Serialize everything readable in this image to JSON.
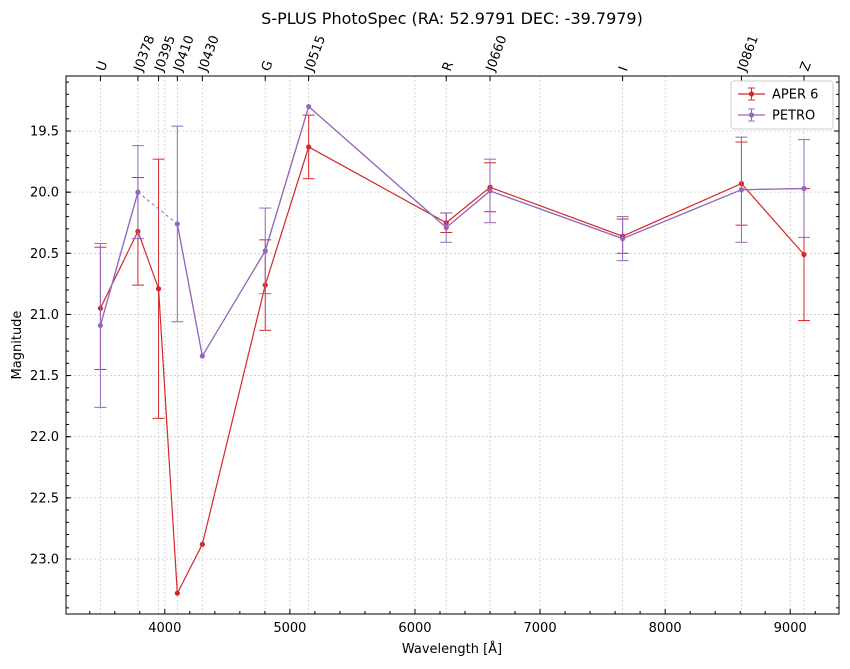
{
  "chart_data": {
    "type": "line",
    "title": "S-PLUS PhotoSpec (RA: 52.9791 DEC: -39.7979)",
    "xlabel": "Wavelength [Å]",
    "ylabel": "Magnitude",
    "xlim": [
      3210,
      9390
    ],
    "ylim": [
      23.45,
      19.05
    ],
    "y_inverted": true,
    "grid": true,
    "legend_position": "top-right",
    "xticks": [
      4000,
      5000,
      6000,
      7000,
      8000,
      9000
    ],
    "yticks": [
      19.5,
      20.0,
      20.5,
      21.0,
      21.5,
      22.0,
      22.5,
      23.0
    ],
    "ytick_labels": [
      "19.5",
      "20.0",
      "20.5",
      "21.0",
      "21.5",
      "22.0",
      "22.5",
      "23.0"
    ],
    "filters": [
      {
        "name": "U",
        "wavelength": 3485
      },
      {
        "name": "J0378",
        "wavelength": 3785
      },
      {
        "name": "J0395",
        "wavelength": 3950
      },
      {
        "name": "J0410",
        "wavelength": 4100
      },
      {
        "name": "J0430",
        "wavelength": 4300
      },
      {
        "name": "G",
        "wavelength": 4803
      },
      {
        "name": "J0515",
        "wavelength": 5150
      },
      {
        "name": "R",
        "wavelength": 6250
      },
      {
        "name": "J0660",
        "wavelength": 6600
      },
      {
        "name": "I",
        "wavelength": 7660
      },
      {
        "name": "J0861",
        "wavelength": 8610
      },
      {
        "name": "Z",
        "wavelength": 9110
      }
    ],
    "series": [
      {
        "name": "APER 6",
        "color": "#d62728",
        "x": [
          3485,
          3785,
          3950,
          4100,
          4300,
          4803,
          5150,
          6250,
          6600,
          7660,
          8610,
          9110
        ],
        "y": [
          20.95,
          20.32,
          20.79,
          23.28,
          22.88,
          20.76,
          19.63,
          20.25,
          19.96,
          20.36,
          19.93,
          20.51
        ],
        "err": [
          0.5,
          0.44,
          1.06,
          null,
          null,
          0.37,
          0.26,
          0.08,
          0.2,
          0.14,
          0.34,
          0.54
        ]
      },
      {
        "name": "PETRO",
        "color": "#9467bd",
        "x": [
          3485,
          3785,
          4100,
          4300,
          4803,
          5150,
          6250,
          6600,
          7660,
          8610,
          9110
        ],
        "y": [
          21.09,
          20.0,
          20.26,
          21.34,
          20.48,
          19.3,
          20.29,
          19.99,
          20.38,
          19.98,
          19.97
        ],
        "err": [
          0.67,
          0.38,
          0.8,
          null,
          0.35,
          null,
          0.12,
          0.26,
          0.18,
          0.43,
          0.4
        ],
        "dashed_gap": [
          3785,
          4100
        ]
      }
    ]
  }
}
